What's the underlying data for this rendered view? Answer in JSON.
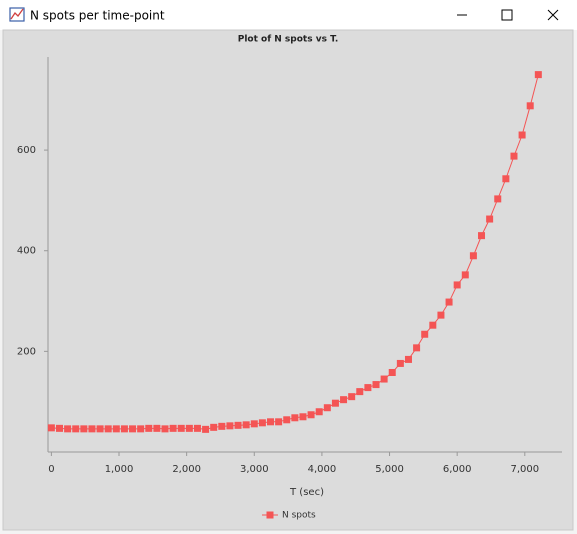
{
  "window": {
    "title": "N spots per time-point"
  },
  "chart_data": {
    "type": "line",
    "title": "Plot of N spots vs T.",
    "xlabel": "T (sec)",
    "x": [
      0,
      120,
      240,
      360,
      480,
      600,
      720,
      840,
      960,
      1080,
      1200,
      1320,
      1440,
      1560,
      1680,
      1800,
      1920,
      2040,
      2160,
      2280,
      2400,
      2520,
      2640,
      2760,
      2880,
      3000,
      3120,
      3240,
      3360,
      3480,
      3600,
      3720,
      3840,
      3960,
      4080,
      4200,
      4320,
      4440,
      4560,
      4680,
      4800,
      4920,
      5040,
      5160,
      5280,
      5400,
      5520,
      5640,
      5760,
      5880,
      6000,
      6120,
      6240,
      6360,
      6480,
      6600,
      6720,
      6840,
      6960,
      7080,
      7200
    ],
    "series": [
      {
        "name": "N spots",
        "color": "#f45555",
        "values": [
          48,
          47,
          46,
          46,
          46,
          46,
          46,
          46,
          46,
          46,
          46,
          46,
          47,
          47,
          46,
          47,
          47,
          47,
          47,
          45,
          49,
          51,
          52,
          53,
          54,
          56,
          58,
          60,
          60,
          64,
          68,
          70,
          74,
          80,
          88,
          97,
          104,
          110,
          120,
          128,
          134,
          145,
          158,
          176,
          184,
          207,
          234,
          252,
          272,
          298,
          332,
          352,
          390,
          430,
          463,
          503,
          543,
          588,
          630,
          688,
          750
        ]
      }
    ],
    "xlim": [
      -50,
      7550
    ],
    "ylim": [
      0,
      785
    ],
    "xticks": [
      0,
      {
        "value": 1000,
        "label": "1,000"
      },
      {
        "value": 2000,
        "label": "2,000"
      },
      {
        "value": 3000,
        "label": "3,000"
      },
      {
        "value": 4000,
        "label": "4,000"
      },
      {
        "value": 5000,
        "label": "5,000"
      },
      {
        "value": 6000,
        "label": "6,000"
      },
      {
        "value": 7000,
        "label": "7,000"
      }
    ],
    "yticks": [
      200,
      400,
      600
    ],
    "legend": "bottom"
  }
}
